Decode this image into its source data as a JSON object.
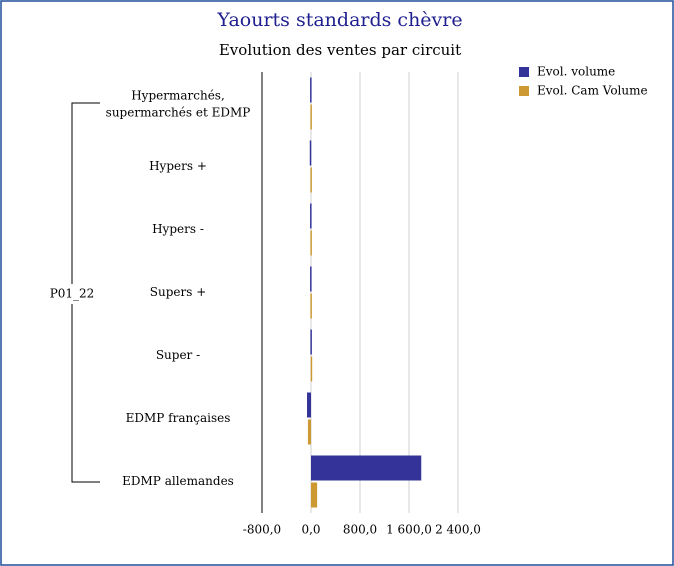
{
  "chart_data": {
    "type": "hbar",
    "title": "Yaourts standards chèvre",
    "subtitle": "Evolution des ventes par circuit",
    "group_label": "P01_22",
    "categories": [
      "Hypermarchés, supermarchés et EDMP",
      "Hypers +",
      "Hypers -",
      "Supers +",
      "Super -",
      "EDMP françaises",
      "EDMP allemandes"
    ],
    "series": [
      {
        "name": "Evol. volume",
        "color": "#333399",
        "values": [
          -15,
          -20,
          -15,
          -15,
          -10,
          -65,
          1800
        ]
      },
      {
        "name": "Evol. Cam Volume",
        "color": "#cc9933",
        "values": [
          -10,
          -10,
          -10,
          -10,
          -5,
          -50,
          100
        ]
      }
    ],
    "xlim": [
      -800,
      2400
    ],
    "xticks": [
      {
        "value": -800,
        "label": "-800,0"
      },
      {
        "value": 0,
        "label": "0,0"
      },
      {
        "value": 800,
        "label": "800,0"
      },
      {
        "value": 1600,
        "label": "1 600,0"
      },
      {
        "value": 2400,
        "label": "2 400,0"
      }
    ],
    "grid": true,
    "legend": "top-right"
  }
}
